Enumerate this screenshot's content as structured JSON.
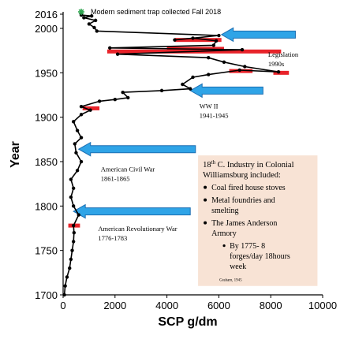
{
  "chart_data": {
    "type": "line",
    "xlabel": "SCP g/dm",
    "ylabel": "Year",
    "xlim": [
      0,
      10000
    ],
    "ylim": [
      1700,
      2016
    ],
    "x_ticks": [
      0,
      2000,
      4000,
      6000,
      8000,
      10000
    ],
    "y_ticks": [
      1700,
      1750,
      1800,
      1850,
      1900,
      1950,
      2000,
      2016
    ],
    "series": [
      {
        "points": [
          {
            "x": 50,
            "y": 1700
          },
          {
            "x": 80,
            "y": 1710
          },
          {
            "x": 150,
            "y": 1720
          },
          {
            "x": 250,
            "y": 1730
          },
          {
            "x": 300,
            "y": 1740
          },
          {
            "x": 350,
            "y": 1750
          },
          {
            "x": 400,
            "y": 1760
          },
          {
            "x": 420,
            "y": 1770
          },
          {
            "x": 400,
            "y": 1778
          },
          {
            "x": 600,
            "y": 1790
          },
          {
            "x": 400,
            "y": 1800
          },
          {
            "x": 300,
            "y": 1810
          },
          {
            "x": 400,
            "y": 1820
          },
          {
            "x": 300,
            "y": 1830
          },
          {
            "x": 550,
            "y": 1840
          },
          {
            "x": 700,
            "y": 1850
          },
          {
            "x": 500,
            "y": 1860
          },
          {
            "x": 450,
            "y": 1870
          },
          {
            "x": 700,
            "y": 1877
          },
          {
            "x": 550,
            "y": 1885
          },
          {
            "x": 400,
            "y": 1895
          },
          {
            "x": 700,
            "y": 1903
          },
          {
            "x": 1050,
            "y": 1908
          },
          {
            "x": 700,
            "y": 1912
          },
          {
            "x": 1400,
            "y": 1918
          },
          {
            "x": 2000,
            "y": 1920
          },
          {
            "x": 2500,
            "y": 1922
          },
          {
            "x": 2300,
            "y": 1928
          },
          {
            "x": 3800,
            "y": 1930
          },
          {
            "x": 4900,
            "y": 1932
          },
          {
            "x": 4600,
            "y": 1937
          },
          {
            "x": 5000,
            "y": 1945
          },
          {
            "x": 5600,
            "y": 1948
          },
          {
            "x": 6800,
            "y": 1953
          },
          {
            "x": 8300,
            "y": 1951
          },
          {
            "x": 7000,
            "y": 1957
          },
          {
            "x": 6200,
            "y": 1962
          },
          {
            "x": 5600,
            "y": 1967
          },
          {
            "x": 2100,
            "y": 1971
          },
          {
            "x": 6900,
            "y": 1976
          },
          {
            "x": 1800,
            "y": 1978
          },
          {
            "x": 5800,
            "y": 1981
          },
          {
            "x": 5900,
            "y": 1986
          },
          {
            "x": 5000,
            "y": 1989
          },
          {
            "x": 4300,
            "y": 1987
          },
          {
            "x": 6000,
            "y": 1992
          },
          {
            "x": 1300,
            "y": 1997
          },
          {
            "x": 1200,
            "y": 2001
          },
          {
            "x": 1000,
            "y": 2005
          },
          {
            "x": 1250,
            "y": 2009
          },
          {
            "x": 800,
            "y": 2012
          },
          {
            "x": 1100,
            "y": 2014
          },
          {
            "x": 700,
            "y": 2015
          }
        ]
      }
    ],
    "red_bars": [
      {
        "y": 1778,
        "x1": 200,
        "x2": 650
      },
      {
        "y": 1910,
        "x1": 750,
        "x2": 1400
      },
      {
        "y": 1952,
        "x1": 6400,
        "x2": 7300
      },
      {
        "y": 1950,
        "x1": 8100,
        "x2": 8700
      },
      {
        "y": 1974,
        "x1": 1700,
        "x2": 8400
      },
      {
        "y": 1977,
        "x1": 4000,
        "x2": 6200
      },
      {
        "y": 1987,
        "x1": 4300,
        "x2": 6100
      }
    ],
    "arrows": [
      {
        "y": 1993,
        "x_tip": 6100,
        "x_tail": 8950,
        "label_lines": [
          "Legislation",
          "1990s"
        ],
        "label_x": 7900,
        "label_y": 1968
      },
      {
        "y": 1930,
        "x_tip": 4900,
        "x_tail": 7700,
        "label_lines": [
          "WW II",
          "1941-1945"
        ],
        "label_x": 5250,
        "label_y": 1910
      },
      {
        "y": 1864,
        "x_tip": 600,
        "x_tail": 5100,
        "label_lines": [
          "American Civil War",
          "1861-1865"
        ],
        "label_x": 1450,
        "label_y": 1839
      },
      {
        "y": 1794,
        "x_tip": 400,
        "x_tail": 4900,
        "label_lines": [
          "American Revolutionary War",
          "1776-1783"
        ],
        "label_x": 1350,
        "label_y": 1772
      }
    ],
    "top_note": "Modern sediment trap collected Fall 2018",
    "info_box": {
      "title_pre": "18",
      "title_sup": "th",
      "title_post": " C. Industry in Colonial",
      "title_line2": "Williamsburg included:",
      "bullets": [
        "Coal fired house stoves",
        "Metal foundries and",
        "smelting",
        "The James Anderson",
        "Armory"
      ],
      "sub_bullet_lines": [
        "By 1775- 8",
        "forges/day 18hours",
        "week"
      ],
      "citation": "Graham, 1945"
    },
    "colors": {
      "line": "#000000",
      "red_bar": "#e8232a",
      "arrow_fill": "#2fa4e7",
      "arrow_stroke": "#1d6fb3",
      "box_fill": "#f8e3d5",
      "trap_marker": "#2ea44f"
    }
  }
}
